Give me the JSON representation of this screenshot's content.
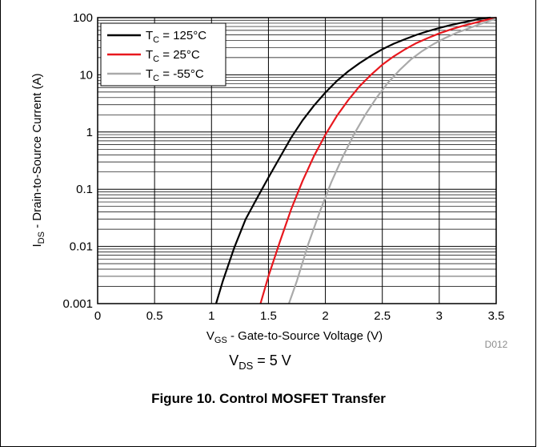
{
  "chart_data": {
    "type": "line",
    "xlabel": {
      "prefix": "V",
      "sub": "GS",
      "rest": " - Gate-to-Source Voltage (V)"
    },
    "ylabel": {
      "prefix": "I",
      "sub": "DS",
      "rest": " - Drain-to-Source Current (A)"
    },
    "xlim": [
      0,
      3.5
    ],
    "ylim": [
      0.001,
      100
    ],
    "yscale": "log",
    "grid": true,
    "legend_position": "top-left",
    "x_ticks": [
      "0",
      "0.5",
      "1",
      "1.5",
      "2",
      "2.5",
      "3",
      "3.5"
    ],
    "y_ticks": [
      "0.001",
      "0.01",
      "0.1",
      "1",
      "10",
      "100"
    ],
    "series": [
      {
        "name_prefix": "T",
        "name_sub": "C",
        "name_rest": " = 125°C",
        "color": "#000000",
        "points": [
          [
            1.04,
            0.001
          ],
          [
            1.1,
            0.0025
          ],
          [
            1.2,
            0.0095
          ],
          [
            1.3,
            0.03
          ],
          [
            1.4,
            0.07
          ],
          [
            1.5,
            0.16
          ],
          [
            1.6,
            0.36
          ],
          [
            1.7,
            0.8
          ],
          [
            1.8,
            1.6
          ],
          [
            1.9,
            2.9
          ],
          [
            2.0,
            4.9
          ],
          [
            2.1,
            7.8
          ],
          [
            2.2,
            11.5
          ],
          [
            2.3,
            16
          ],
          [
            2.4,
            21.5
          ],
          [
            2.5,
            28
          ],
          [
            2.6,
            35
          ],
          [
            2.7,
            42
          ],
          [
            2.8,
            50
          ],
          [
            2.9,
            58
          ],
          [
            3.0,
            66
          ],
          [
            3.1,
            74
          ],
          [
            3.2,
            82
          ],
          [
            3.3,
            90
          ],
          [
            3.35,
            95
          ],
          [
            3.45,
            100
          ]
        ]
      },
      {
        "name_prefix": "T",
        "name_sub": "C",
        "name_rest": " = 25°C",
        "color": "#e8181e",
        "points": [
          [
            1.43,
            0.001
          ],
          [
            1.5,
            0.003
          ],
          [
            1.6,
            0.012
          ],
          [
            1.7,
            0.045
          ],
          [
            1.8,
            0.14
          ],
          [
            1.9,
            0.38
          ],
          [
            2.0,
            0.9
          ],
          [
            2.1,
            1.9
          ],
          [
            2.2,
            3.6
          ],
          [
            2.3,
            6.3
          ],
          [
            2.4,
            10
          ],
          [
            2.5,
            15
          ],
          [
            2.6,
            21
          ],
          [
            2.7,
            28
          ],
          [
            2.8,
            36
          ],
          [
            2.9,
            44
          ],
          [
            3.0,
            53
          ],
          [
            3.1,
            62
          ],
          [
            3.2,
            71
          ],
          [
            3.3,
            80
          ],
          [
            3.4,
            90
          ],
          [
            3.5,
            100
          ]
        ]
      },
      {
        "name_prefix": "T",
        "name_sub": "C",
        "name_rest": " = -55°C",
        "color": "#aaaaaa",
        "points": [
          [
            1.68,
            0.001
          ],
          [
            1.75,
            0.0025
          ],
          [
            1.85,
            0.011
          ],
          [
            1.95,
            0.04
          ],
          [
            2.05,
            0.13
          ],
          [
            2.15,
            0.36
          ],
          [
            2.25,
            0.9
          ],
          [
            2.35,
            2.0
          ],
          [
            2.45,
            4.0
          ],
          [
            2.55,
            7.3
          ],
          [
            2.65,
            12
          ],
          [
            2.75,
            18.5
          ],
          [
            2.85,
            26
          ],
          [
            2.95,
            34.5
          ],
          [
            3.05,
            44
          ],
          [
            3.15,
            54
          ],
          [
            3.25,
            64
          ],
          [
            3.35,
            76
          ],
          [
            3.45,
            89
          ],
          [
            3.5,
            96
          ]
        ]
      }
    ]
  },
  "annotations": {
    "condition_prefix": "V",
    "condition_sub": "DS",
    "condition_rest": " = 5 V",
    "figure_code": "D012"
  },
  "caption": "Figure 10. Control MOSFET Transfer"
}
